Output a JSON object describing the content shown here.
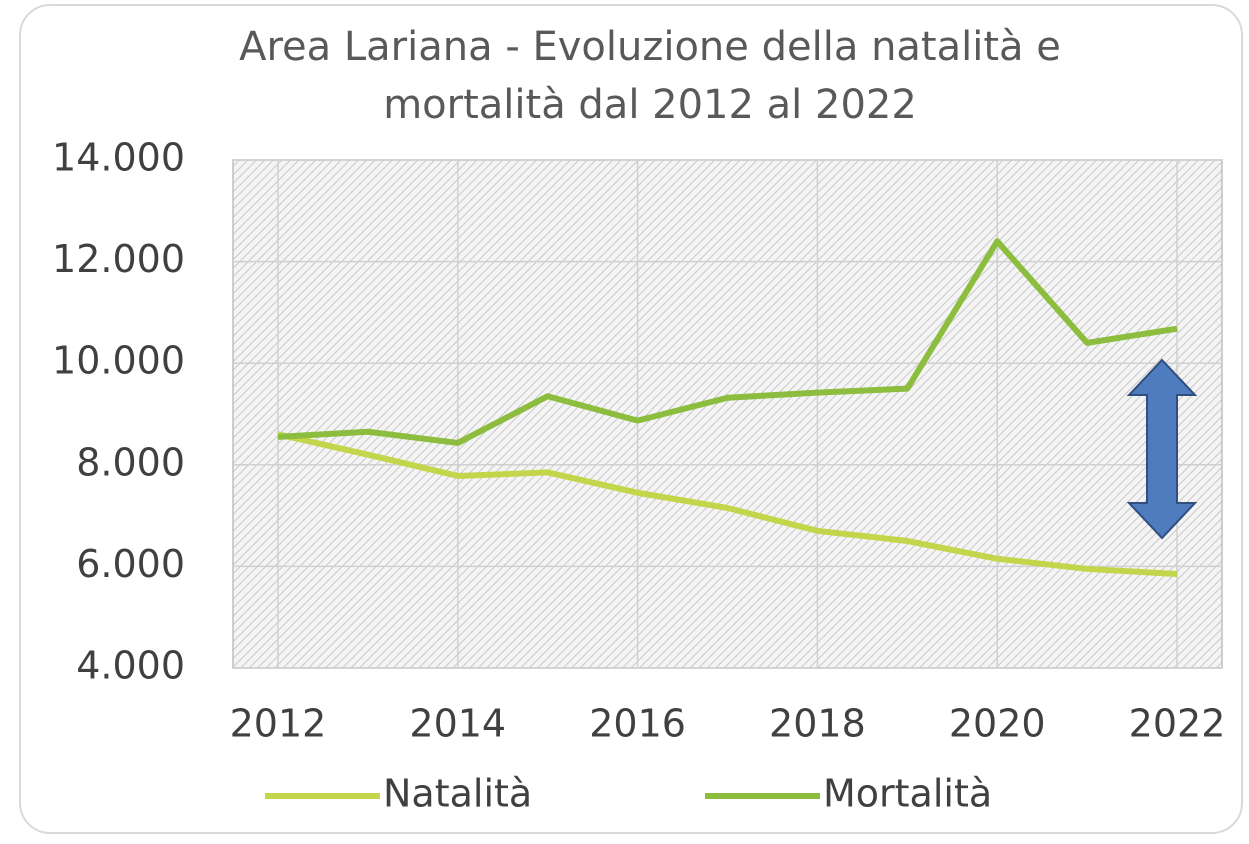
{
  "chart_data": {
    "type": "line",
    "title": "Area Lariana - Evoluzione della natalità e mortalità dal 2012 al 2022",
    "x": [
      2012,
      2013,
      2014,
      2015,
      2016,
      2017,
      2018,
      2019,
      2020,
      2021,
      2022
    ],
    "series": [
      {
        "name": "Natalità",
        "color": "#c3d64b",
        "values": [
          8600,
          8200,
          7780,
          7850,
          7450,
          7150,
          6700,
          6500,
          6150,
          5950,
          5850
        ]
      },
      {
        "name": "Mortalità",
        "color": "#8cbd3e",
        "values": [
          8550,
          8650,
          8430,
          9350,
          8870,
          9320,
          9420,
          9500,
          12400,
          10400,
          10680
        ]
      }
    ],
    "xlim": [
      2011.5,
      2022.5
    ],
    "xticks": [
      2012,
      2014,
      2016,
      2018,
      2020,
      2022
    ],
    "ylim": [
      4000,
      14000
    ],
    "yticks": [
      {
        "value": 4000,
        "label": "4.000"
      },
      {
        "value": 6000,
        "label": "6.000"
      },
      {
        "value": 8000,
        "label": "8.000"
      },
      {
        "value": 10000,
        "label": "10.000"
      },
      {
        "value": 12000,
        "label": "12.000"
      },
      {
        "value": 14000,
        "label": "14.000"
      }
    ],
    "grid": true,
    "legend": "bottom"
  }
}
